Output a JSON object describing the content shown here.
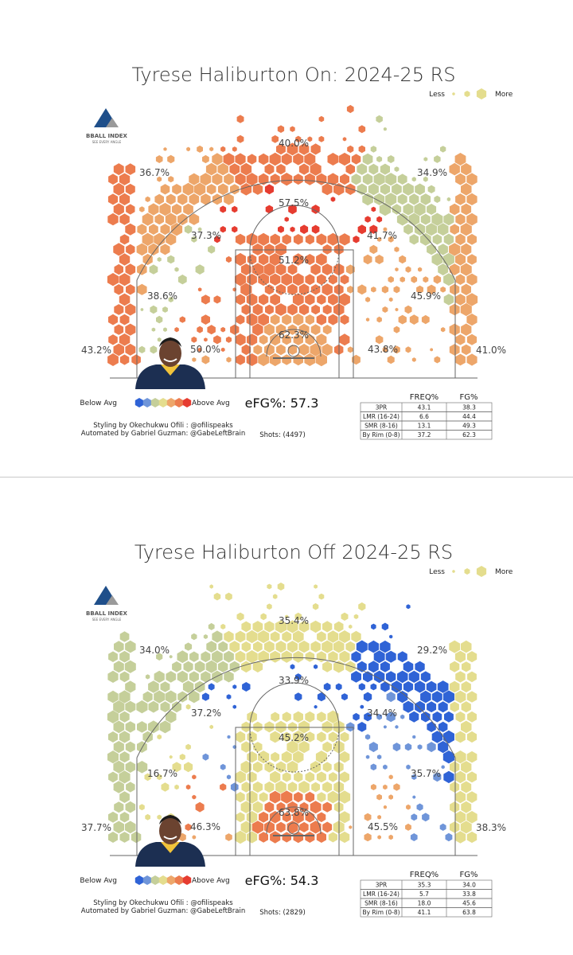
{
  "logo": {
    "name": "BBALL INDEX",
    "tagline": "SEE EVERY ANGLE"
  },
  "legend": {
    "size_less": "Less",
    "size_more": "More",
    "color_below": "Below Avg",
    "color_above": "Above Avg"
  },
  "colors": {
    "below_strong": "#2f63d6",
    "below_mild": "#6f95d9",
    "neutral_green": "#c5cf9a",
    "neutral_yellow": "#e4dd8e",
    "above_mild": "#eda66a",
    "above_mid": "#ec7c4e",
    "above_strong": "#e63c30",
    "court_line": "#666666"
  },
  "chart_data": [
    {
      "type": "heatmap",
      "title": "Tyrese Haliburton On: 2024-25 RS",
      "efg_label": "eFG%: 57.3",
      "shots_label": "Shots: (4497)",
      "credits": [
        "Styling by Okechukwu Ofili : @ofilispeaks",
        "Automated by Gabriel Guzman: @GabeLeftBrain"
      ],
      "zones": [
        {
          "zone": "Top of key 3",
          "fg_pct": "40.0%"
        },
        {
          "zone": "Left wing 3",
          "fg_pct": "36.7%"
        },
        {
          "zone": "Right wing 3",
          "fg_pct": "34.9%"
        },
        {
          "zone": "Left corner 3",
          "fg_pct": "43.2%"
        },
        {
          "zone": "Right corner 3",
          "fg_pct": "41.0%"
        },
        {
          "zone": "Top long midrange",
          "fg_pct": "57.5%"
        },
        {
          "zone": "Left elbow",
          "fg_pct": "37.3%"
        },
        {
          "zone": "Right elbow",
          "fg_pct": "41.7%"
        },
        {
          "zone": "Paint",
          "fg_pct": "51.2%"
        },
        {
          "zone": "Left mid",
          "fg_pct": "38.6%"
        },
        {
          "zone": "Right mid",
          "fg_pct": "45.9%"
        },
        {
          "zone": "Left baseline mid",
          "fg_pct": "50.0%"
        },
        {
          "zone": "Right baseline mid",
          "fg_pct": "43.8%"
        },
        {
          "zone": "Rim",
          "fg_pct": "62.3%"
        }
      ],
      "table": {
        "columns": [
          "",
          "FREQ%",
          "FG%"
        ],
        "rows": [
          [
            "3PR",
            "43.1",
            "38.3"
          ],
          [
            "LMR (16-24)",
            "6.6",
            "44.4"
          ],
          [
            "SMR (8-16)",
            "13.1",
            "49.3"
          ],
          [
            "By Rim (0-8)",
            "37.2",
            "62.3"
          ]
        ]
      }
    },
    {
      "type": "heatmap",
      "title": "Tyrese Haliburton Off 2024-25 RS",
      "efg_label": "eFG%: 54.3",
      "shots_label": "Shots: (2829)",
      "credits": [
        "Styling by Okechukwu Ofili : @ofilispeaks",
        "Automated by Gabriel Guzman: @GabeLeftBrain"
      ],
      "zones": [
        {
          "zone": "Top of key 3",
          "fg_pct": "35.4%"
        },
        {
          "zone": "Left wing 3",
          "fg_pct": "34.0%"
        },
        {
          "zone": "Right wing 3",
          "fg_pct": "29.2%"
        },
        {
          "zone": "Left corner 3",
          "fg_pct": "37.7%"
        },
        {
          "zone": "Right corner 3",
          "fg_pct": "38.3%"
        },
        {
          "zone": "Top long midrange",
          "fg_pct": "33.9%"
        },
        {
          "zone": "Left elbow",
          "fg_pct": "37.2%"
        },
        {
          "zone": "Right elbow",
          "fg_pct": "34.4%"
        },
        {
          "zone": "Paint",
          "fg_pct": "45.2%"
        },
        {
          "zone": "Left mid",
          "fg_pct": "16.7%"
        },
        {
          "zone": "Right mid",
          "fg_pct": "35.7%"
        },
        {
          "zone": "Left baseline mid",
          "fg_pct": "46.3%"
        },
        {
          "zone": "Right baseline mid",
          "fg_pct": "45.5%"
        },
        {
          "zone": "Rim",
          "fg_pct": "63.8%"
        }
      ],
      "table": {
        "columns": [
          "",
          "FREQ%",
          "FG%"
        ],
        "rows": [
          [
            "3PR",
            "35.3",
            "34.0"
          ],
          [
            "LMR (16-24)",
            "5.7",
            "33.8"
          ],
          [
            "SMR (8-16)",
            "18.0",
            "45.6"
          ],
          [
            "By Rim (0-8)",
            "41.1",
            "63.8"
          ]
        ]
      }
    }
  ]
}
